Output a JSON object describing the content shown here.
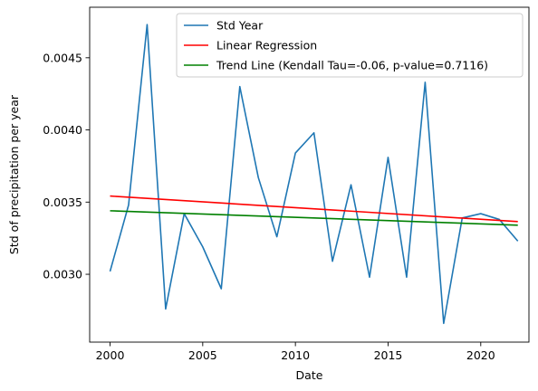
{
  "chart_data": {
    "type": "line",
    "title": "",
    "xlabel": "Date",
    "ylabel": "Std of precipitation per year",
    "xlim": [
      1998.9,
      2022.6
    ],
    "ylim": [
      0.00253,
      0.00485
    ],
    "xticks": [
      2000,
      2005,
      2010,
      2015,
      2020
    ],
    "xtick_labels": [
      "2000",
      "2005",
      "2010",
      "2015",
      "2020"
    ],
    "yticks": [
      0.003,
      0.0035,
      0.004,
      0.0045
    ],
    "ytick_labels": [
      "0.0030",
      "0.0035",
      "0.0040",
      "0.0045"
    ],
    "grid": false,
    "legend_position": "top-right",
    "series": [
      {
        "name": "Std Year",
        "color": "#1f77b4",
        "x": [
          2000,
          2001,
          2002,
          2003,
          2004,
          2005,
          2006,
          2007,
          2008,
          2009,
          2010,
          2011,
          2012,
          2013,
          2014,
          2015,
          2016,
          2017,
          2018,
          2019,
          2020,
          2021,
          2022
        ],
        "y": [
          0.00302,
          0.00348,
          0.00473,
          0.00276,
          0.00342,
          0.00319,
          0.0029,
          0.0043,
          0.00367,
          0.00326,
          0.00384,
          0.00398,
          0.00309,
          0.00362,
          0.00298,
          0.00381,
          0.00298,
          0.00433,
          0.00266,
          0.00339,
          0.00342,
          0.00338,
          0.00323
        ]
      },
      {
        "name": "Linear Regression",
        "color": "#ff0000",
        "x": [
          2000,
          2022
        ],
        "y": [
          0.003542,
          0.003365
        ]
      },
      {
        "name": "Trend Line (Kendall Tau=-0.06, p-value=0.7116)",
        "color": "#008000",
        "x": [
          2000,
          2022
        ],
        "y": [
          0.00344,
          0.00334
        ]
      }
    ]
  }
}
